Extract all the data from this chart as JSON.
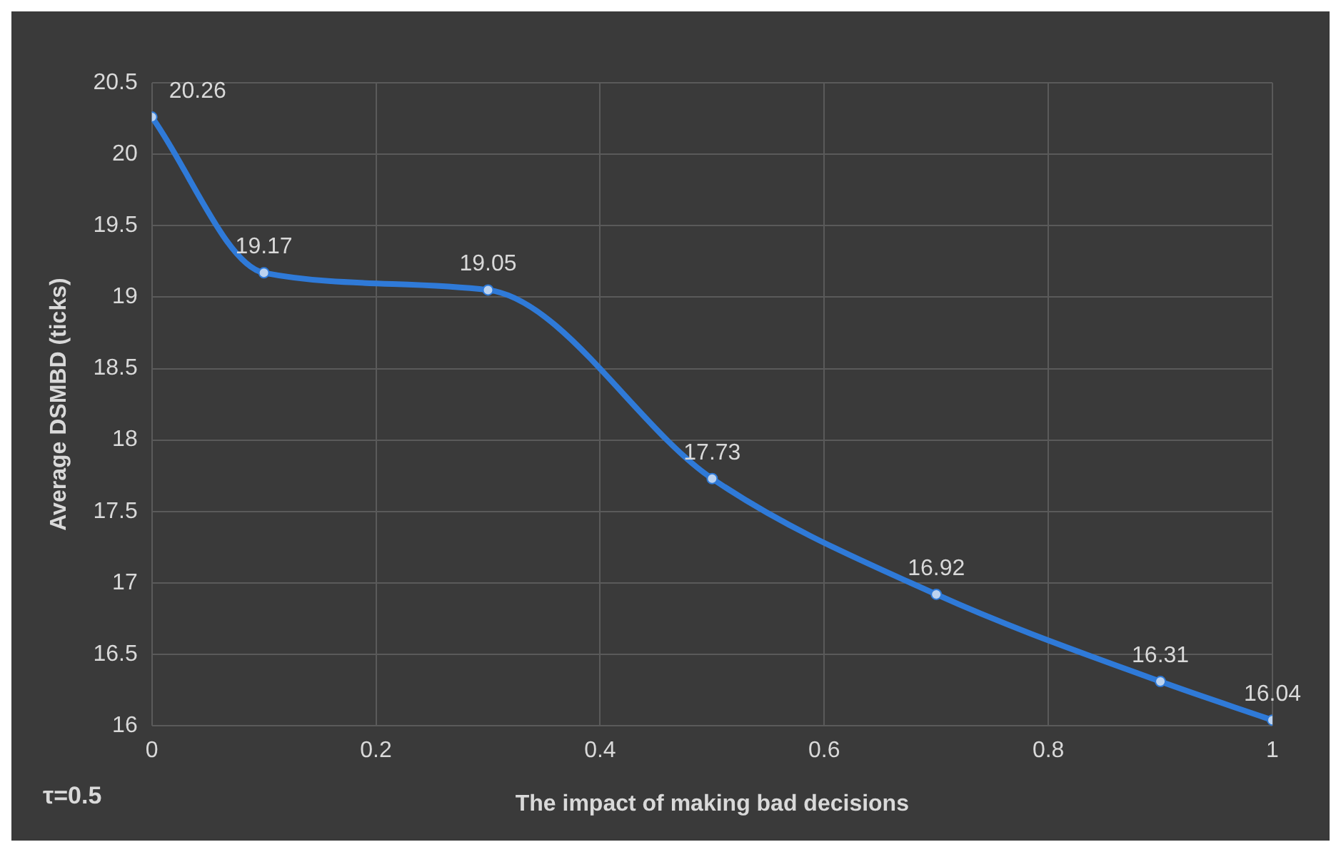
{
  "chart_data": {
    "type": "line",
    "xlabel": "The impact of making bad decisions",
    "ylabel": "Average DSMBD (ticks)",
    "x": [
      0,
      0.1,
      0.3,
      0.5,
      0.7,
      0.9,
      1
    ],
    "series": [
      {
        "color": "#2f7ad8",
        "values": [
          20.26,
          19.17,
          19.05,
          17.73,
          16.92,
          16.31,
          16.04
        ]
      }
    ],
    "xlim": [
      0,
      1
    ],
    "xticks": [
      0,
      0.2,
      0.4,
      0.6,
      0.8,
      1
    ],
    "ylim": [
      16,
      20.5
    ],
    "yticks": [
      16,
      16.5,
      17,
      17.5,
      18,
      18.5,
      19,
      19.5,
      20,
      20.5
    ],
    "grid": true,
    "legend": false,
    "marker": "circle",
    "line_style": "solid",
    "data_labels": true,
    "annotations": [
      "τ=0.5"
    ]
  }
}
